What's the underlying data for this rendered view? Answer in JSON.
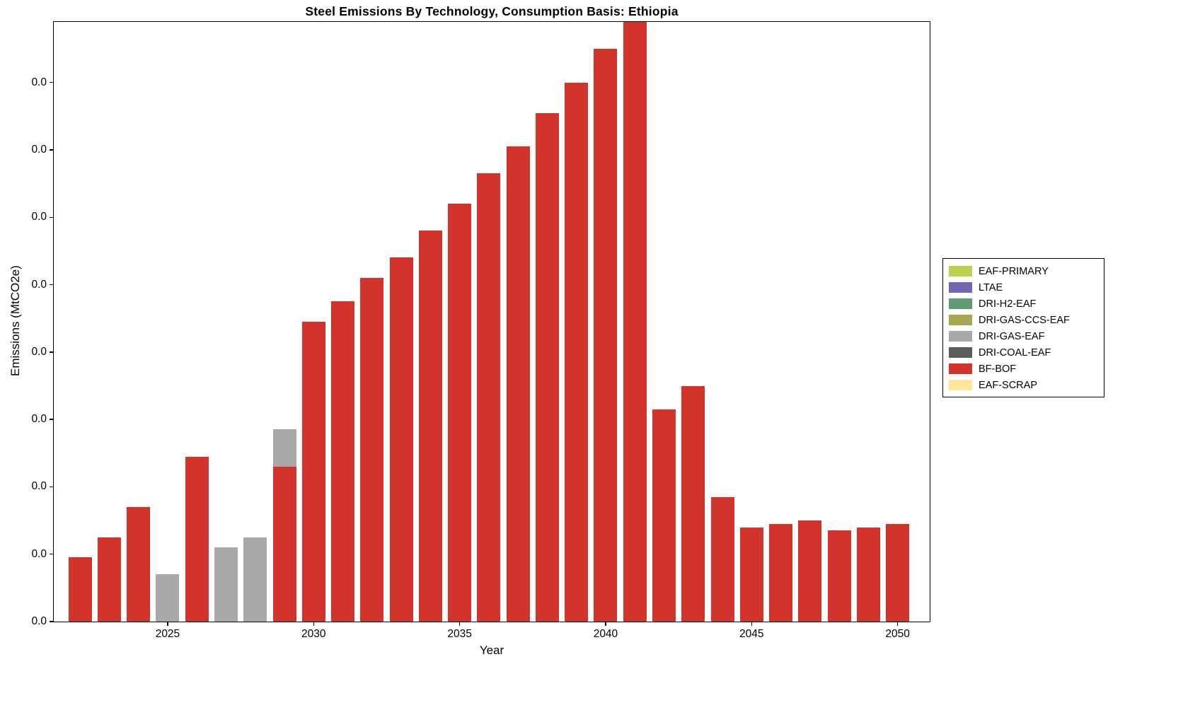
{
  "title": "Steel Emissions By Technology, Consumption Basis: Ethiopia",
  "xlabel": "Year",
  "ylabel": "Emissions (MtCO2e)",
  "legend": {
    "position": "right-outside",
    "entries": [
      {
        "label": "EAF-PRIMARY",
        "color": "#bdd04f"
      },
      {
        "label": "LTAE",
        "color": "#7066b4"
      },
      {
        "label": "DRI-H2-EAF",
        "color": "#609b74"
      },
      {
        "label": "DRI-GAS-CCS-EAF",
        "color": "#a6a851"
      },
      {
        "label": "DRI-GAS-EAF",
        "color": "#a9a9a9"
      },
      {
        "label": "DRI-COAL-EAF",
        "color": "#5c5c5c"
      },
      {
        "label": "BF-BOF",
        "color": "#d0342a"
      },
      {
        "label": "EAF-SCRAP",
        "color": "#ffe699"
      }
    ]
  },
  "chart_data": {
    "type": "bar",
    "stacked": true,
    "title": "Steel Emissions By Technology, Consumption Basis: Ethiopia",
    "xlabel": "Year",
    "ylabel": "Emissions (MtCO2e)",
    "grid": false,
    "xlim": [
      2021.1,
      2051.1
    ],
    "ylim": [
      0,
      0.0178
    ],
    "bar_width_years": 0.8,
    "categories": [
      2022,
      2023,
      2024,
      2025,
      2026,
      2027,
      2028,
      2029,
      2030,
      2031,
      2032,
      2033,
      2034,
      2035,
      2036,
      2037,
      2038,
      2039,
      2040,
      2041,
      2042,
      2043,
      2044,
      2045,
      2046,
      2047,
      2048,
      2049,
      2050
    ],
    "series": [
      {
        "name": "BF-BOF",
        "color": "#d0342a",
        "values": [
          0.0019,
          0.0025,
          0.0034,
          0,
          0.0049,
          0,
          0,
          0.0046,
          0.0089,
          0.0095,
          0.0102,
          0.0108,
          0.0116,
          0.0124,
          0.0133,
          0.0141,
          0.0151,
          0.016,
          0.017,
          0.0178,
          0.0063,
          0.007,
          0.0037,
          0.0028,
          0.0029,
          0.003,
          0.0027,
          0.0028,
          0.0029
        ]
      },
      {
        "name": "DRI-GAS-EAF",
        "color": "#a9a9a9",
        "values": [
          0,
          0,
          0,
          0.0014,
          0,
          0.0022,
          0.0025,
          0.0011,
          0,
          0,
          0,
          0,
          0,
          0,
          0,
          0,
          0,
          0,
          0,
          0,
          0,
          0,
          0,
          0,
          0,
          0,
          0,
          0,
          0
        ]
      }
    ],
    "x_ticks": [
      {
        "value": 2025,
        "label": "2025"
      },
      {
        "value": 2030,
        "label": "2030"
      },
      {
        "value": 2035,
        "label": "2035"
      },
      {
        "value": 2040,
        "label": "2040"
      },
      {
        "value": 2045,
        "label": "2045"
      },
      {
        "value": 2050,
        "label": "2050"
      }
    ],
    "y_ticks": [
      {
        "value": 0.0,
        "label": "0.0"
      },
      {
        "value": 0.002,
        "label": "0.0"
      },
      {
        "value": 0.004,
        "label": "0.0"
      },
      {
        "value": 0.006,
        "label": "0.0"
      },
      {
        "value": 0.008,
        "label": "0.0"
      },
      {
        "value": 0.01,
        "label": "0.0"
      },
      {
        "value": 0.012,
        "label": "0.0"
      },
      {
        "value": 0.014,
        "label": "0.0"
      },
      {
        "value": 0.016,
        "label": "0.0"
      }
    ]
  }
}
